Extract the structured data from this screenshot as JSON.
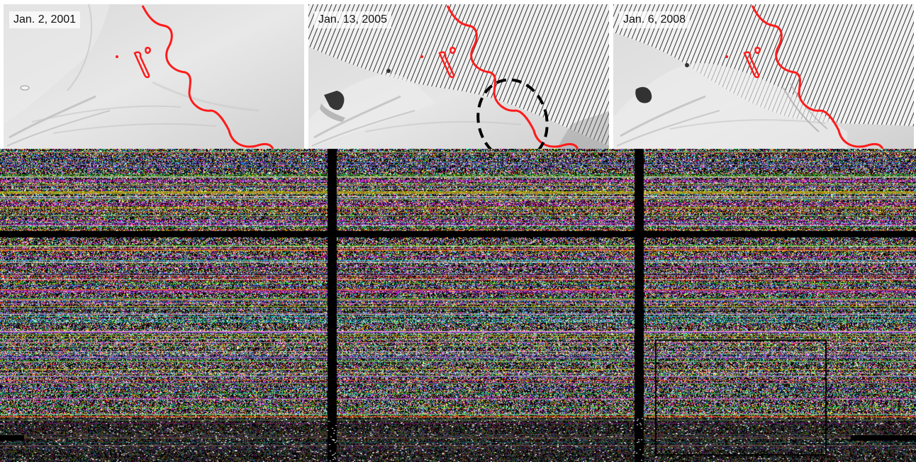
{
  "panels": [
    {
      "label": "Jan. 2, 2001"
    },
    {
      "label": "Jan. 13, 2005"
    },
    {
      "label": "Jan. 6, 2008"
    }
  ],
  "colors": {
    "boundary_line": "#ff1a1a",
    "highlight_ellipse": "#000000",
    "stripe": "#111111",
    "ice_base": "#dedede",
    "panel_background": "#ffffff"
  }
}
